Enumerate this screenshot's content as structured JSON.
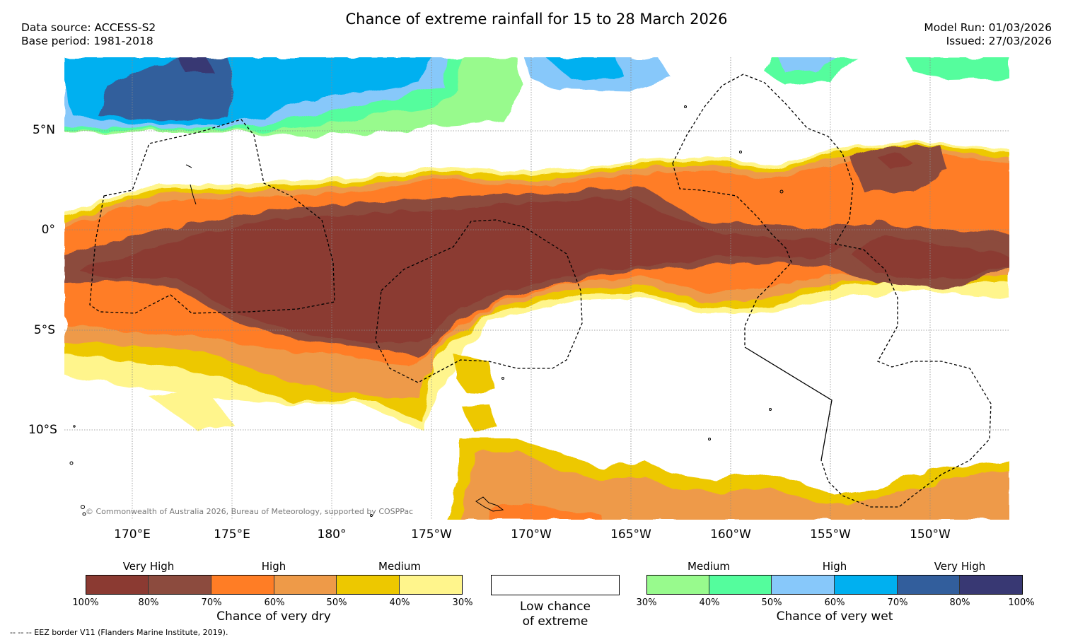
{
  "title": "Chance of extreme rainfall for 15 to 28 March 2026",
  "header": {
    "data_source": "Data source: ACCESS-S2",
    "base_period": "Base period: 1981-2018",
    "model_run": "Model Run: 01/03/2026",
    "issued": "Issued: 27/03/2026"
  },
  "map": {
    "lat_labels": [
      "5°N",
      "0°",
      "5°S",
      "10°S"
    ],
    "lon_labels": [
      "170°E",
      "175°E",
      "180°",
      "175°W",
      "170°W",
      "165°W",
      "160°W",
      "155°W",
      "150°W"
    ],
    "copyright": "© Commonwealth of Australia 2026, Bureau of Meteorology, supported by COSPPac",
    "colors": {
      "vh_dry_100": "#8B3A32",
      "vh_dry_80": "#8C4B3E",
      "high_dry_70": "#FF7D25",
      "high_dry_60": "#EE9A48",
      "med_dry_50": "#EDC800",
      "med_dry_40": "#FFF58C",
      "med_wet_30": "#98FA8D",
      "med_wet_40": "#54FD9D",
      "high_wet_50": "#87C8FA",
      "high_wet_60": "#00B0F0",
      "vh_wet_70": "#325E9C",
      "vh_wet_80": "#383873"
    }
  },
  "dry_legend": {
    "categories": [
      "Very High",
      "High",
      "Medium"
    ],
    "ticks": [
      "100%",
      "80%",
      "70%",
      "60%",
      "50%",
      "40%",
      "30%"
    ],
    "label": "Chance of very dry"
  },
  "low_legend": {
    "line1": "Low chance",
    "line2": "of extreme"
  },
  "wet_legend": {
    "categories": [
      "Medium",
      "High",
      "Very High"
    ],
    "ticks": [
      "30%",
      "40%",
      "50%",
      "60%",
      "70%",
      "80%",
      "100%"
    ],
    "label": "Chance of very wet"
  },
  "footer": "--  --  -- EEZ border V11 (Flanders Marine Institute, 2019)."
}
